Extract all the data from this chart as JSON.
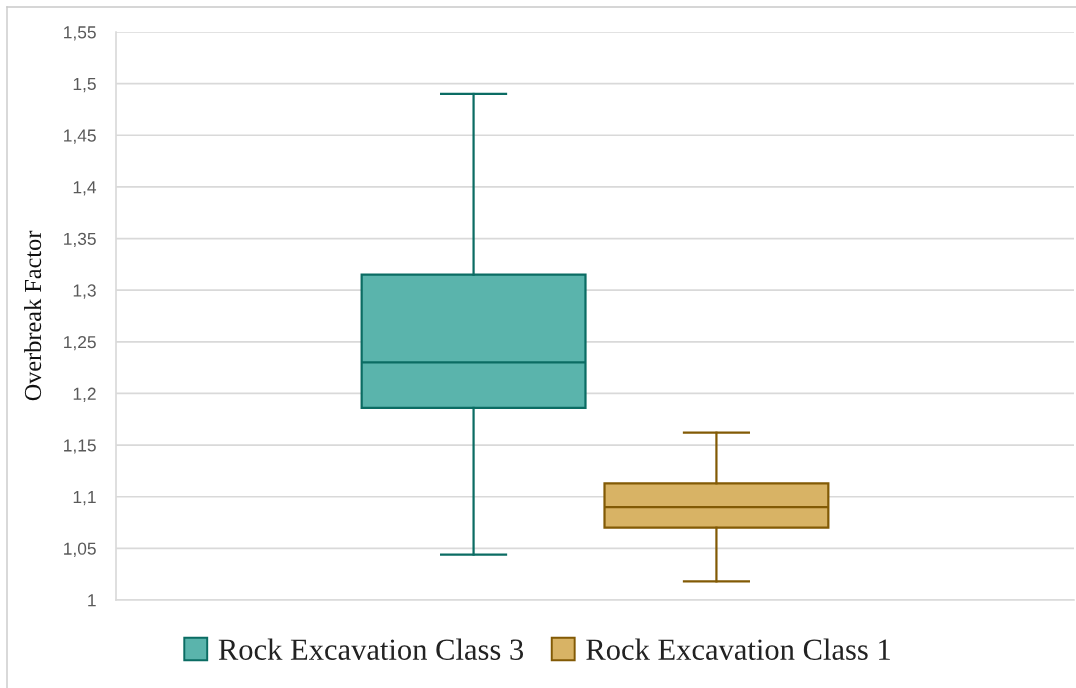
{
  "chart_data": {
    "type": "box",
    "ylabel": "Overbreak Factor",
    "categories": [
      null
    ],
    "series": [
      {
        "name": "Rock Excavation Class 3",
        "color": "#5ab4ac",
        "boxes": [
          {
            "low": 1.044,
            "q1": 1.186,
            "median": 1.23,
            "q3": 1.315,
            "high": 1.49
          }
        ]
      },
      {
        "name": "Rock Excavation Class 1",
        "color": "#d8b365",
        "boxes": [
          {
            "low": 1.018,
            "q1": 1.07,
            "median": 1.09,
            "q3": 1.113,
            "high": 1.162
          }
        ]
      }
    ],
    "ylim": [
      1,
      1.55
    ],
    "yticks": [
      1,
      {
        "value": 1.05,
        "label": "1,05"
      },
      {
        "value": 1.1,
        "label": "1,1"
      },
      {
        "value": 1.15,
        "label": "1,15"
      },
      {
        "value": 1.2,
        "label": "1,2"
      },
      {
        "value": 1.25,
        "label": "1,25"
      },
      {
        "value": 1.3,
        "label": "1,3"
      },
      {
        "value": 1.35,
        "label": "1,35"
      },
      {
        "value": 1.4,
        "label": "1,4"
      },
      {
        "value": 1.45,
        "label": "1,45"
      },
      {
        "value": 1.5,
        "label": "1,5"
      },
      {
        "value": 1.55,
        "label": "1,55"
      }
    ],
    "grid": "y",
    "legend": "bottom",
    "tick_labels": "y"
  }
}
